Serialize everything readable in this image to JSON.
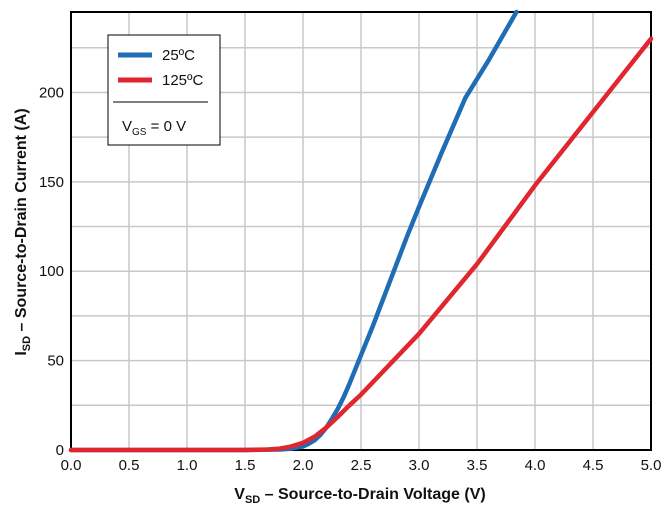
{
  "chart_data": {
    "type": "line",
    "xlim": [
      0.0,
      5.0
    ],
    "ylim": [
      0,
      245
    ],
    "grid": true,
    "x_ticks": [
      "0.0",
      "0.5",
      "1.0",
      "1.5",
      "2.0",
      "2.5",
      "3.0",
      "3.5",
      "4.0",
      "4.5",
      "5.0"
    ],
    "y_ticks": [
      "0",
      "50",
      "100",
      "150",
      "200"
    ],
    "x_tick_values": [
      0.0,
      0.5,
      1.0,
      1.5,
      2.0,
      2.5,
      3.0,
      3.5,
      4.0,
      4.5,
      5.0
    ],
    "y_tick_values": [
      0,
      50,
      100,
      150,
      200
    ],
    "xlabel": {
      "main": "V",
      "sub": "SD",
      "rest": " – Source-to-Drain Voltage (V)"
    },
    "ylabel": {
      "main": "I",
      "sub": "SD",
      "rest": " – Source-to-Drain Current (A)"
    },
    "legend": {
      "placement": "top-left",
      "condition": {
        "main": "V",
        "sub": "GS",
        "rest": " = 0 V"
      }
    },
    "series": [
      {
        "name": "25ºC",
        "color": "#1f6db5",
        "x": [
          0.0,
          1.5,
          1.8,
          1.9,
          2.0,
          2.05,
          2.1,
          2.15,
          2.2,
          2.25,
          2.3,
          2.35,
          2.4,
          2.5,
          2.6,
          2.7,
          2.8,
          2.9,
          3.0,
          3.2,
          3.4,
          3.6,
          3.84
        ],
        "y": [
          0,
          0,
          0.3,
          0.8,
          2,
          3.5,
          5.5,
          8.5,
          12.5,
          17.5,
          23,
          29.5,
          37,
          53,
          69,
          86,
          103,
          120,
          136,
          167,
          197,
          218,
          245
        ]
      },
      {
        "name": "125ºC",
        "color": "#e0262e",
        "x": [
          0.0,
          1.5,
          1.7,
          1.8,
          1.9,
          2.0,
          2.1,
          2.2,
          2.3,
          2.4,
          2.5,
          2.75,
          3.0,
          3.5,
          4.0,
          4.5,
          5.0
        ],
        "y": [
          0,
          0,
          0.3,
          0.8,
          2,
          4,
          7.5,
          12.5,
          18.5,
          25,
          31,
          48,
          65,
          104,
          148,
          189,
          230
        ]
      }
    ]
  }
}
